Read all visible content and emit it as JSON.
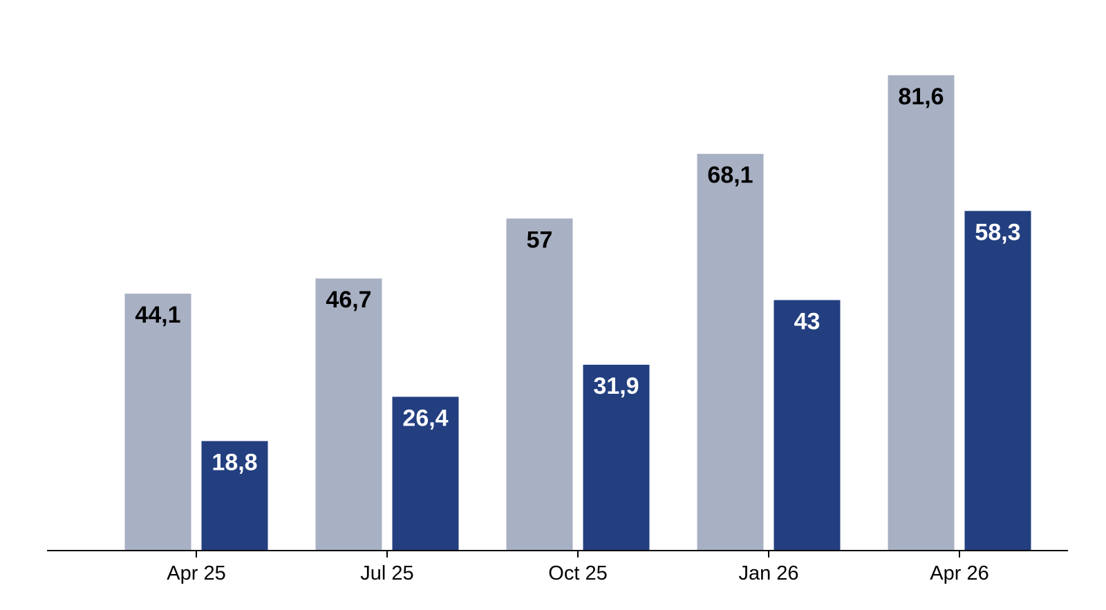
{
  "chart_data": {
    "type": "bar",
    "categories": [
      "Apr 25",
      "Jul 25",
      "Oct 25",
      "Jan 26",
      "Apr 26"
    ],
    "series": [
      {
        "values": [
          44.1,
          46.7,
          57,
          68.1,
          81.6
        ],
        "value_labels": [
          "44,1",
          "46,7",
          "57",
          "68,1",
          "81,6"
        ],
        "color": "#a8b0c3",
        "label_color": "#000000"
      },
      {
        "values": [
          18.8,
          26.4,
          31.9,
          43,
          58.3
        ],
        "value_labels": [
          "18,8",
          "26,4",
          "31,9",
          "43",
          "58,3"
        ],
        "color": "#233f80",
        "label_color": "#ffffff"
      }
    ],
    "ylim": [
      0,
      90
    ],
    "grid": false,
    "legend": "none"
  }
}
